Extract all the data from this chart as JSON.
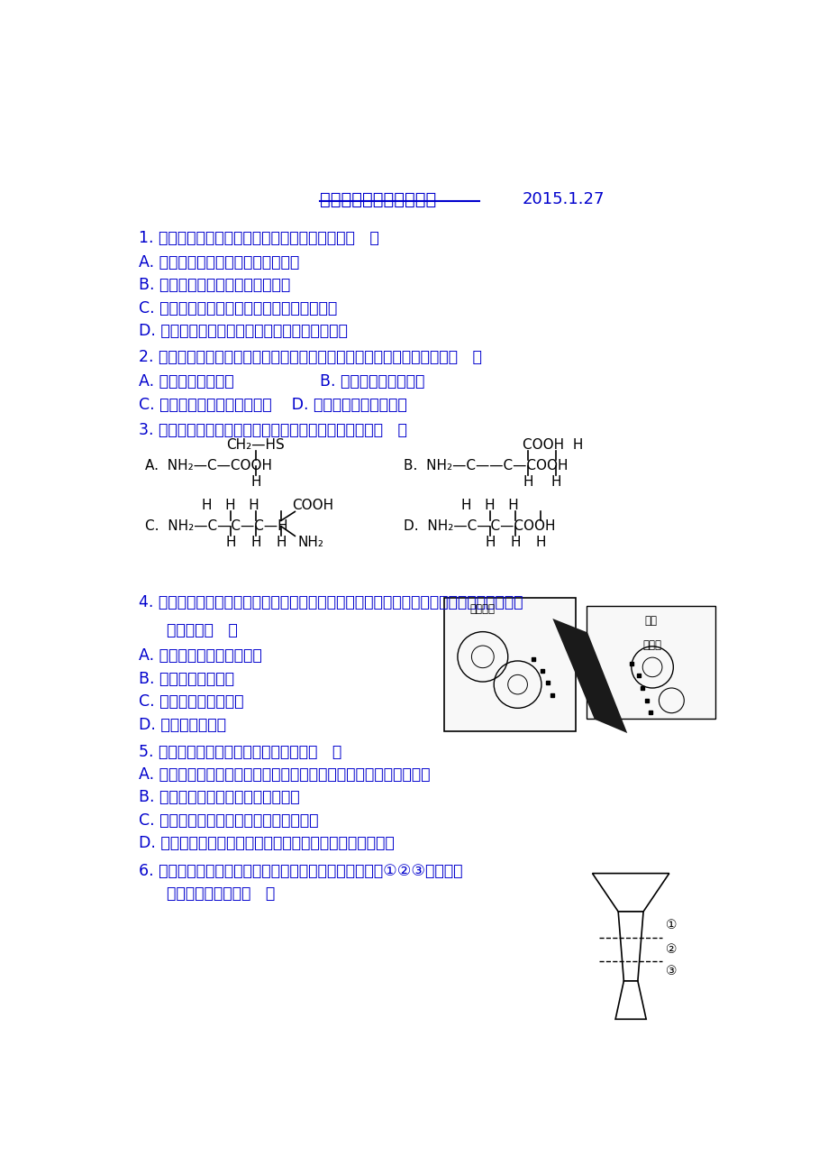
{
  "bg_color": "#ffffff",
  "text_color_blue": "#0000CD",
  "text_color_black": "#000000",
  "title": "高一（上）生物期末练习",
  "date": "2015.1.27",
  "q1_text": "1. 下列关于细胞中水的含量的叙述，不正确的是（   ）",
  "q1_A": "A. 水是人体细胞中含量最多的化合物",
  "q1_B": "B. 抗冻的植物细胞内自由水含量大",
  "q1_C": "C. 老年人体内大多数细胞中含水量比婴儿的少",
  "q1_D": "D. 新陈代谢越旺盛。细胞中的自由水含水量越高",
  "q2_text": "2. 下面是对四种细胞器结构特征的部分描述，其中属于细胞显微结构的是（   ）",
  "q2_A": "A. 线粒体的棒状结构",
  "q2_B": "B. 叶绻体的双层膜结构",
  "q2_C": "C. 两个中心粒的相互垂直结构    D. 高尔基体的单层膜结构",
  "q3_text": "3. 下列氨基酸中，不属于组成生物体蛋白质氨基酸的是（   ）",
  "q4_text": "4. 作为系统的边界，细胞膜在细胞的生命活动中有多种功能。下图的模型主要表明了细胞膜",
  "q4_text2": "功能中的（   ）",
  "q4_A": "A. 将细胞与外界环境分隔开",
  "q4_B": "B. 控制物质进出细胞",
  "q4_C": "C. 进行细胞间信息交流",
  "q4_D": "D. 分泌物质的功能",
  "q5_text": "5. 下列有关生物膜的叙述，不正确的是（   ）",
  "q5_A": "A. 膜的组成成分可以从内质网膜转移到高尔基体膜，再转移到细胞膜",
  "q5_B": "B. 各种细胞膜的化学组成和结构相似",
  "q5_C": "C. 生物膜是对生物体内所有膜结构的统称",
  "q5_D": "D. 生物膜各司其职，又相互协作，共同完成细胞的生理功能",
  "q6_text": "6. 下图所示为再生能力很强的原生动物喉叭虫，将之切成①②③三截，能",
  "q6_text2": "再生成喉叭虫的是（   ）"
}
